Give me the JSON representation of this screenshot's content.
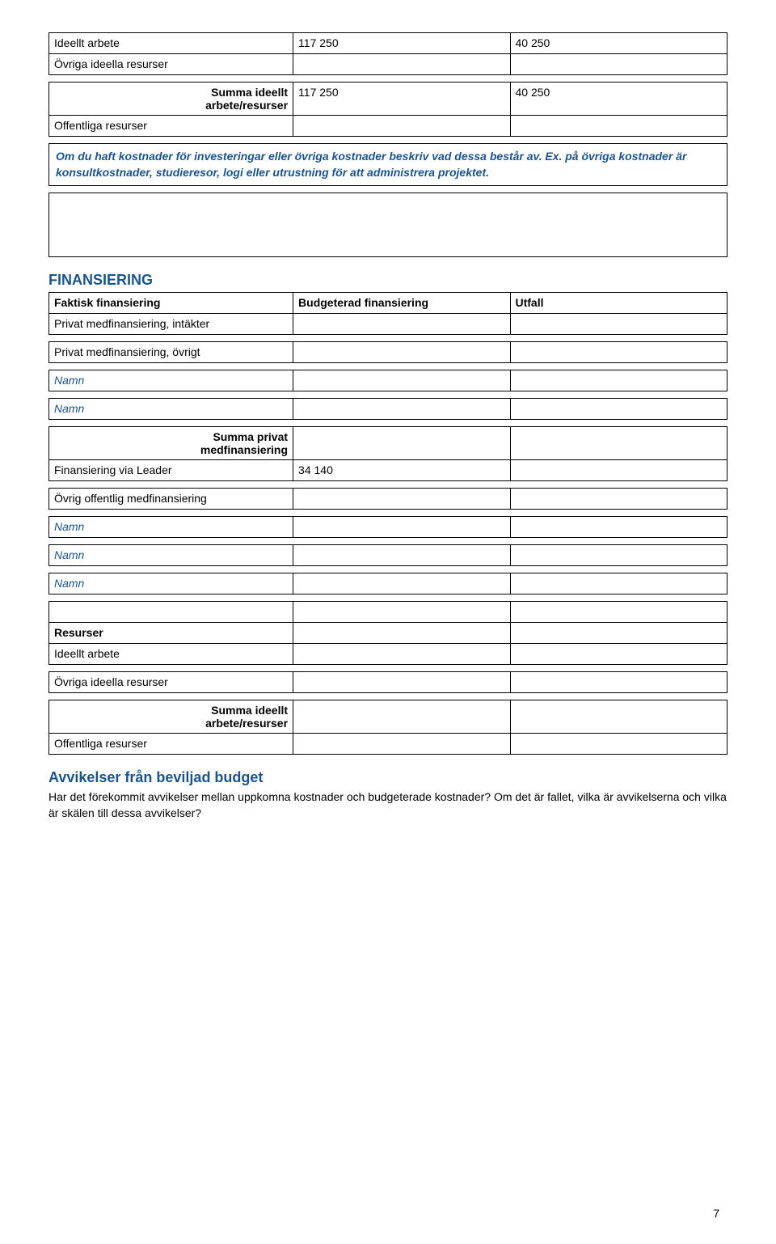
{
  "tableA": {
    "rows": [
      {
        "c1": "Ideellt arbete",
        "c2": "117 250",
        "c3": "40 250"
      },
      {
        "c1": "Övriga ideella resurser",
        "c2": "",
        "c3": ""
      }
    ],
    "sum_label_line1": "Summa ideellt",
    "sum_label_line2": "arbete/resurser",
    "sum_c2": "117 250",
    "sum_c3": "40 250",
    "last_row_c1": "Offentliga resurser"
  },
  "notebox": "Om du haft kostnader för investeringar eller övriga kostnader beskriv vad dessa består av. Ex. på övriga kostnader är konsultkostnader, studieresor, logi eller utrustning för att administrera projektet.",
  "finansiering": {
    "heading": "FINANSIERING",
    "header": {
      "c1": "Faktisk finansiering",
      "c2": "Budgeterad finansiering",
      "c3": "Utfall"
    },
    "row_privat_intakter": "Privat medfinansiering, intäkter",
    "row_privat_ovrigt": "Privat medfinansiering, övrigt",
    "namn": "Namn",
    "sum_privat_line1": "Summa privat",
    "sum_privat_line2": "medfinansiering",
    "row_leader_c1": "Finansiering via Leader",
    "row_leader_c2": "34 140",
    "row_ovrig_off": "Övrig offentlig medfinansiering",
    "resurser": "Resurser",
    "ideellt_arbete": "Ideellt arbete",
    "ovriga_ideella": "Övriga ideella resurser",
    "sum_ideellt_line1": "Summa ideellt",
    "sum_ideellt_line2": "arbete/resurser",
    "offentliga_resurser": "Offentliga resurser"
  },
  "avvik": {
    "heading": "Avvikelser från beviljad budget",
    "text": "Har det förekommit avvikelser mellan uppkomna kostnader och budgeterade kostnader? Om det är fallet, vilka är avvikelserna och vilka är skälen till dessa avvikelser?"
  },
  "page_number": "7"
}
